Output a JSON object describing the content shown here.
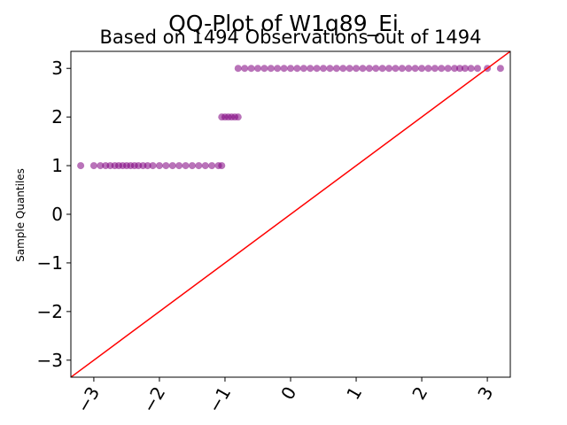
{
  "chart_data": {
    "type": "scatter",
    "title": "QQ-Plot of W1q89_Ei",
    "subtitle": "Based on 1494 Observations out of 1494",
    "xlabel": "",
    "ylabel": "Sample Quantiles",
    "xlim": [
      -3.35,
      3.35
    ],
    "ylim": [
      -3.35,
      3.35
    ],
    "x_ticks": [
      -3,
      -2,
      -1,
      0,
      1,
      2,
      3
    ],
    "x_tick_labels": [
      "−3",
      "−2",
      "−1",
      "0",
      "1",
      "2",
      "3"
    ],
    "y_ticks": [
      -3,
      -2,
      -1,
      0,
      1,
      2,
      3
    ],
    "y_tick_labels": [
      "−3",
      "−2",
      "−1",
      "0",
      "1",
      "2",
      "3"
    ],
    "grid": false,
    "colors": {
      "points": "#800080",
      "reference_line": "#ff0000"
    },
    "series": [
      {
        "values": [
          [
            -3.2,
            1
          ],
          [
            -3.0,
            1
          ],
          [
            -2.9,
            1
          ],
          [
            -2.82,
            1
          ],
          [
            -2.75,
            1
          ],
          [
            -2.68,
            1
          ],
          [
            -2.62,
            1
          ],
          [
            -2.56,
            1
          ],
          [
            -2.5,
            1
          ],
          [
            -2.44,
            1
          ],
          [
            -2.38,
            1
          ],
          [
            -2.32,
            1
          ],
          [
            -2.25,
            1
          ],
          [
            -2.18,
            1
          ],
          [
            -2.1,
            1
          ],
          [
            -2.0,
            1
          ],
          [
            -1.9,
            1
          ],
          [
            -1.8,
            1
          ],
          [
            -1.7,
            1
          ],
          [
            -1.6,
            1
          ],
          [
            -1.5,
            1
          ],
          [
            -1.4,
            1
          ],
          [
            -1.3,
            1
          ],
          [
            -1.2,
            1
          ],
          [
            -1.1,
            1
          ],
          [
            -1.05,
            1
          ],
          [
            -1.05,
            2
          ],
          [
            -1.0,
            2
          ],
          [
            -0.95,
            2
          ],
          [
            -0.9,
            2
          ],
          [
            -0.85,
            2
          ],
          [
            -0.8,
            2
          ],
          [
            -0.8,
            3
          ],
          [
            -0.7,
            3
          ],
          [
            -0.6,
            3
          ],
          [
            -0.5,
            3
          ],
          [
            -0.4,
            3
          ],
          [
            -0.3,
            3
          ],
          [
            -0.2,
            3
          ],
          [
            -0.1,
            3
          ],
          [
            0.0,
            3
          ],
          [
            0.1,
            3
          ],
          [
            0.2,
            3
          ],
          [
            0.3,
            3
          ],
          [
            0.4,
            3
          ],
          [
            0.5,
            3
          ],
          [
            0.6,
            3
          ],
          [
            0.7,
            3
          ],
          [
            0.8,
            3
          ],
          [
            0.9,
            3
          ],
          [
            1.0,
            3
          ],
          [
            1.1,
            3
          ],
          [
            1.2,
            3
          ],
          [
            1.3,
            3
          ],
          [
            1.4,
            3
          ],
          [
            1.5,
            3
          ],
          [
            1.6,
            3
          ],
          [
            1.7,
            3
          ],
          [
            1.8,
            3
          ],
          [
            1.9,
            3
          ],
          [
            2.0,
            3
          ],
          [
            2.1,
            3
          ],
          [
            2.2,
            3
          ],
          [
            2.3,
            3
          ],
          [
            2.4,
            3
          ],
          [
            2.5,
            3
          ],
          [
            2.58,
            3
          ],
          [
            2.66,
            3
          ],
          [
            2.75,
            3
          ],
          [
            2.85,
            3
          ],
          [
            3.0,
            3
          ],
          [
            3.2,
            3
          ]
        ]
      }
    ],
    "reference_line": {
      "from": [
        -3.35,
        -3.35
      ],
      "to": [
        3.35,
        3.35
      ]
    }
  }
}
